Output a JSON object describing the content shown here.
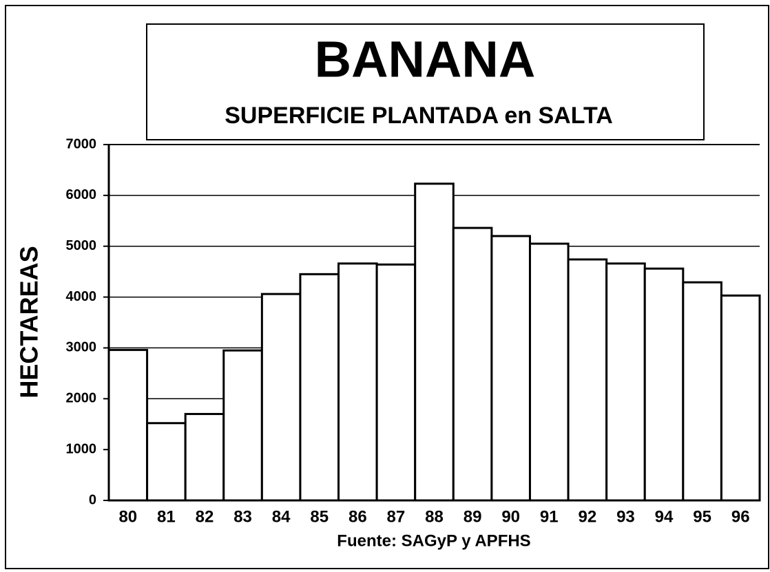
{
  "chart_data": {
    "type": "bar",
    "title": "BANANA",
    "subtitle": "SUPERFICIE PLANTADA en SALTA",
    "y_label": "HECTAREAS",
    "x_label": "Fuente: SAGyP y APFHS",
    "categories": [
      "80",
      "81",
      "82",
      "83",
      "84",
      "85",
      "86",
      "87",
      "88",
      "89",
      "90",
      "91",
      "92",
      "93",
      "94",
      "95",
      "96"
    ],
    "values": [
      2960,
      1520,
      1700,
      2950,
      4060,
      4450,
      4660,
      4640,
      6230,
      5360,
      5200,
      5050,
      4740,
      4660,
      4560,
      4290,
      4030
    ],
    "color": "#ffffff",
    "ylim": [
      0,
      7000
    ],
    "yticks": [
      0,
      1000,
      2000,
      3000,
      4000,
      5000,
      6000,
      7000
    ],
    "grid": true
  }
}
